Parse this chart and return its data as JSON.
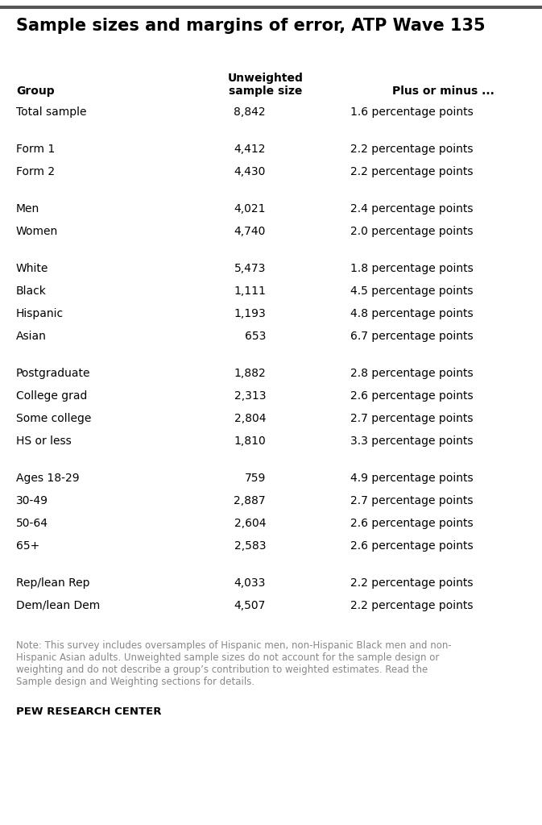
{
  "title": "Sample sizes and margins of error, ATP Wave 135",
  "col_headers": [
    "Group",
    "Unweighted\nsample size",
    "Plus or minus ..."
  ],
  "rows": [
    {
      "group": "Total sample",
      "sample": "8,842",
      "moe": "1.6 percentage points",
      "spacer_before": false
    },
    {
      "group": "Form 1",
      "sample": "4,412",
      "moe": "2.2 percentage points",
      "spacer_before": true
    },
    {
      "group": "Form 2",
      "sample": "4,430",
      "moe": "2.2 percentage points",
      "spacer_before": false
    },
    {
      "group": "Men",
      "sample": "4,021",
      "moe": "2.4 percentage points",
      "spacer_before": true
    },
    {
      "group": "Women",
      "sample": "4,740",
      "moe": "2.0 percentage points",
      "spacer_before": false
    },
    {
      "group": "White",
      "sample": "5,473",
      "moe": "1.8 percentage points",
      "spacer_before": true
    },
    {
      "group": "Black",
      "sample": "1,111",
      "moe": "4.5 percentage points",
      "spacer_before": false
    },
    {
      "group": "Hispanic",
      "sample": "1,193",
      "moe": "4.8 percentage points",
      "spacer_before": false
    },
    {
      "group": "Asian",
      "sample": "653",
      "moe": "6.7 percentage points",
      "spacer_before": false
    },
    {
      "group": "Postgraduate",
      "sample": "1,882",
      "moe": "2.8 percentage points",
      "spacer_before": true
    },
    {
      "group": "College grad",
      "sample": "2,313",
      "moe": "2.6 percentage points",
      "spacer_before": false
    },
    {
      "group": "Some college",
      "sample": "2,804",
      "moe": "2.7 percentage points",
      "spacer_before": false
    },
    {
      "group": "HS or less",
      "sample": "1,810",
      "moe": "3.3 percentage points",
      "spacer_before": false
    },
    {
      "group": "Ages 18-29",
      "sample": "759",
      "moe": "4.9 percentage points",
      "spacer_before": true
    },
    {
      "group": "30-49",
      "sample": "2,887",
      "moe": "2.7 percentage points",
      "spacer_before": false
    },
    {
      "group": "50-64",
      "sample": "2,604",
      "moe": "2.6 percentage points",
      "spacer_before": false
    },
    {
      "group": "65+",
      "sample": "2,583",
      "moe": "2.6 percentage points",
      "spacer_before": false
    },
    {
      "group": "Rep/lean Rep",
      "sample": "4,033",
      "moe": "2.2 percentage points",
      "spacer_before": true
    },
    {
      "group": "Dem/lean Dem",
      "sample": "4,507",
      "moe": "2.2 percentage points",
      "spacer_before": false
    }
  ],
  "note": "Note: This survey includes oversamples of Hispanic men, non-Hispanic Black men and non-\nHispanic Asian adults. Unweighted sample sizes do not account for the sample design or\nweighting and do not describe a group’s contribution to weighted estimates. Read the\nSample design and Weighting sections for details.",
  "source": "PEW RESEARCH CENTER",
  "bg_color": "#ffffff",
  "text_color": "#000000",
  "header_color": "#000000",
  "note_color": "#888888",
  "title_color": "#000000",
  "line_color": "#555555",
  "fig_width": 6.73,
  "fig_height": 10.23,
  "dpi": 100
}
